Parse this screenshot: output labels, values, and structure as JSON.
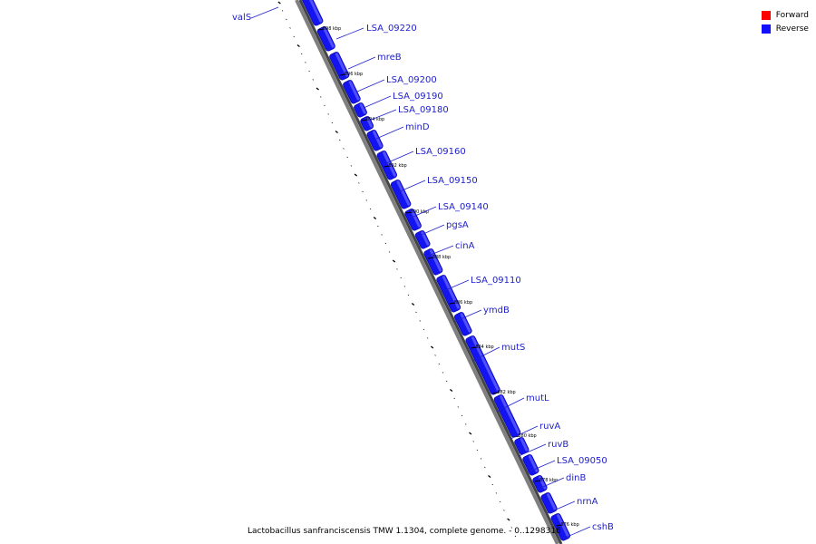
{
  "caption": "Lactobacillus sanfranciscensis TMW 1.1304, complete genome. - 0..1298316",
  "legend": [
    {
      "label": "Forward",
      "color": "#ff0000"
    },
    {
      "label": "Reverse",
      "color": "#1010ff"
    }
  ],
  "colors": {
    "feature": "#1414f0",
    "label": "#2020cc",
    "backbone": "#7f7f7f"
  },
  "ticks": [
    "898 kbp",
    "896 kbp",
    "894 kbp",
    "892 kbp",
    "890 kbp",
    "888 kbp",
    "886 kbp",
    "884 kbp",
    "882 kbp",
    "880 kbp",
    "878 kbp",
    "876 kbp"
  ],
  "genes": [
    "valS",
    "LSA_09220",
    "mreB",
    "LSA_09200",
    "LSA_09190",
    "LSA_09180",
    "minD",
    "LSA_09160",
    "LSA_09150",
    "LSA_09140",
    "pgsA",
    "cinA",
    "LSA_09110",
    "ymdB",
    "mutS",
    "mutL",
    "ruvA",
    "ruvB",
    "LSA_09050",
    "dinB",
    "nrnA",
    "cshB"
  ]
}
